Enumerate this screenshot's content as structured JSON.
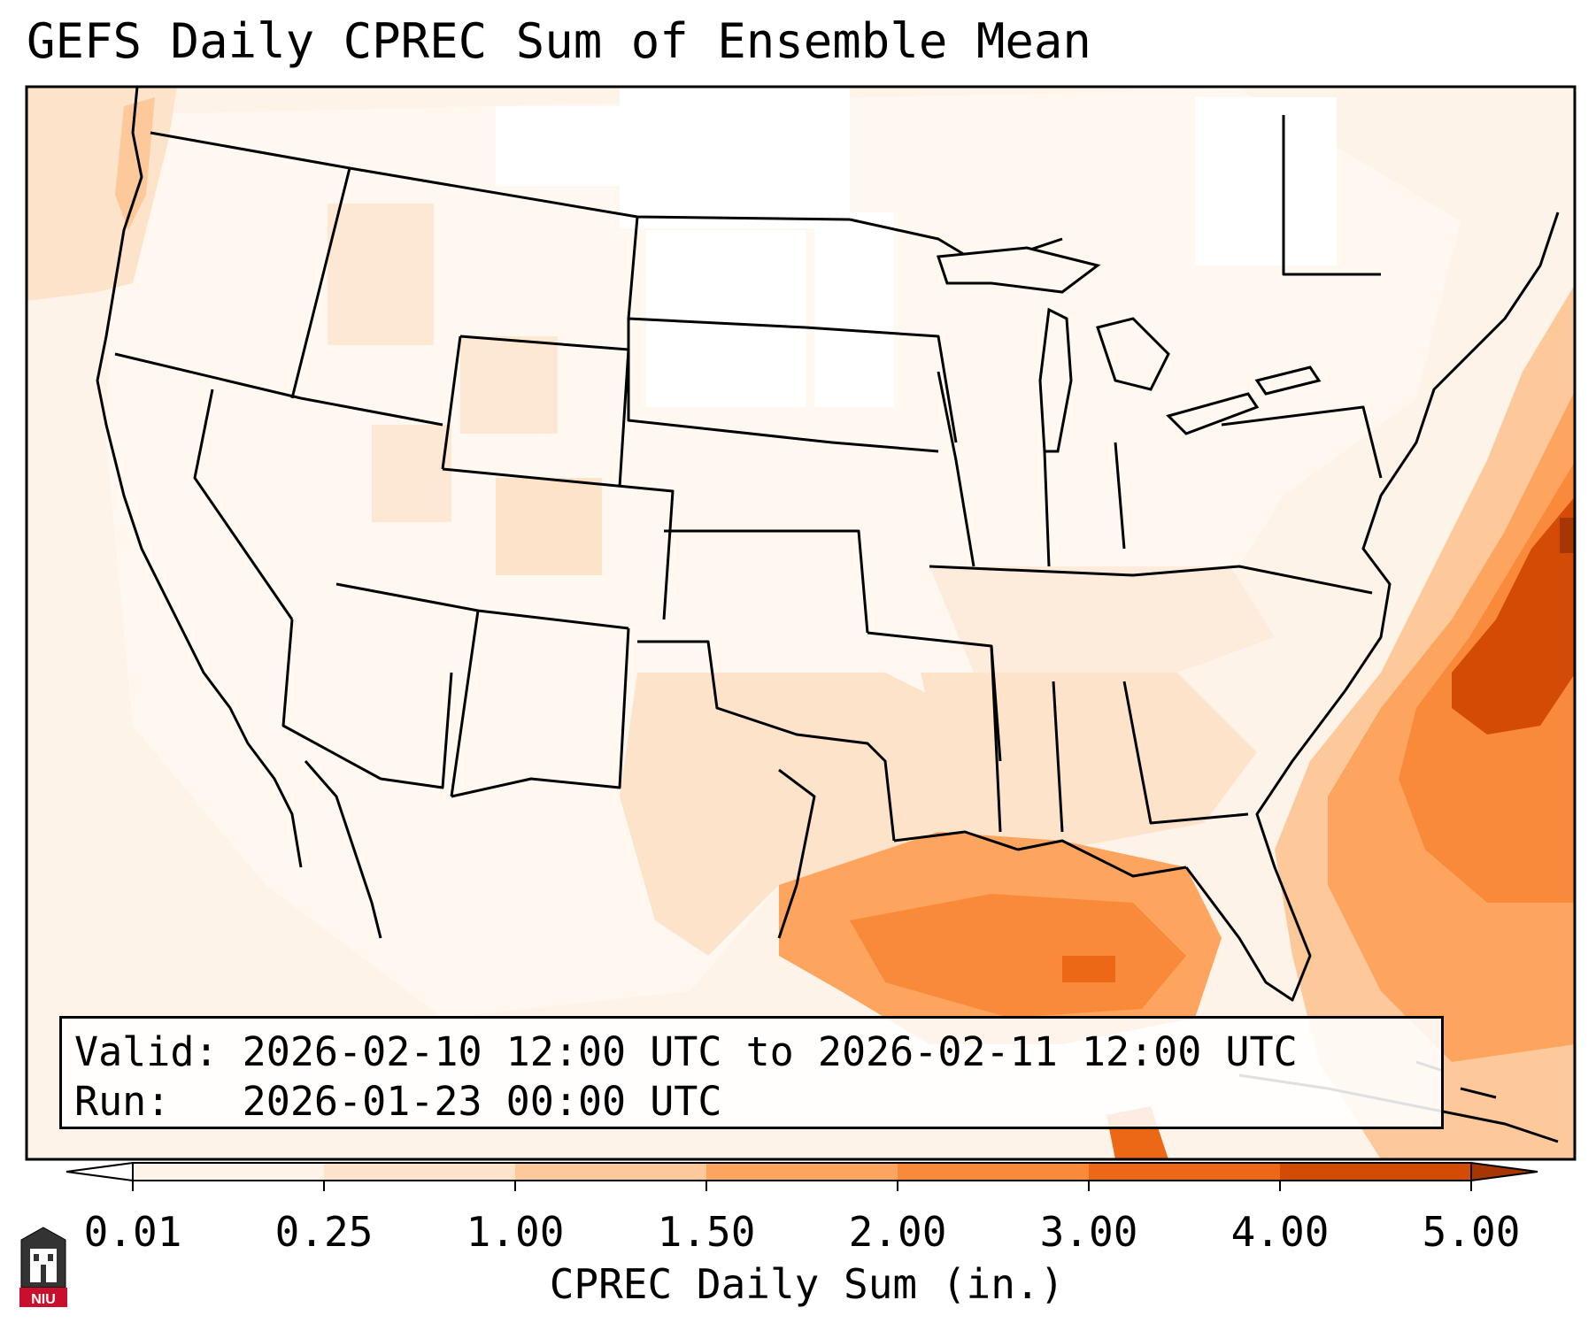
{
  "title": "GEFS Daily CPREC Sum of Ensemble Mean",
  "info": {
    "valid_line": "Valid: 2026-02-10 12:00 UTC to 2026-02-11 12:00 UTC",
    "run_line": "Run:   2026-01-23 00:00 UTC"
  },
  "colorbar": {
    "label": "CPREC Daily Sum (in.)",
    "ticks": [
      "0.01",
      "0.25",
      "1.00",
      "1.50",
      "2.00",
      "3.00",
      "4.00",
      "5.00"
    ],
    "colors": [
      "#fef3e8",
      "#fde3ca",
      "#fdc99a",
      "#fda55f",
      "#f98a3a",
      "#ec6716",
      "#d34b05",
      "#a63603"
    ],
    "extend": "both"
  },
  "logo": {
    "text": "NIU"
  },
  "map": {
    "region": "Continental United States",
    "colors": {
      "ocean_bg": "#fef3e8",
      "land_bg": "#fff9f3",
      "border": "#000000"
    }
  }
}
